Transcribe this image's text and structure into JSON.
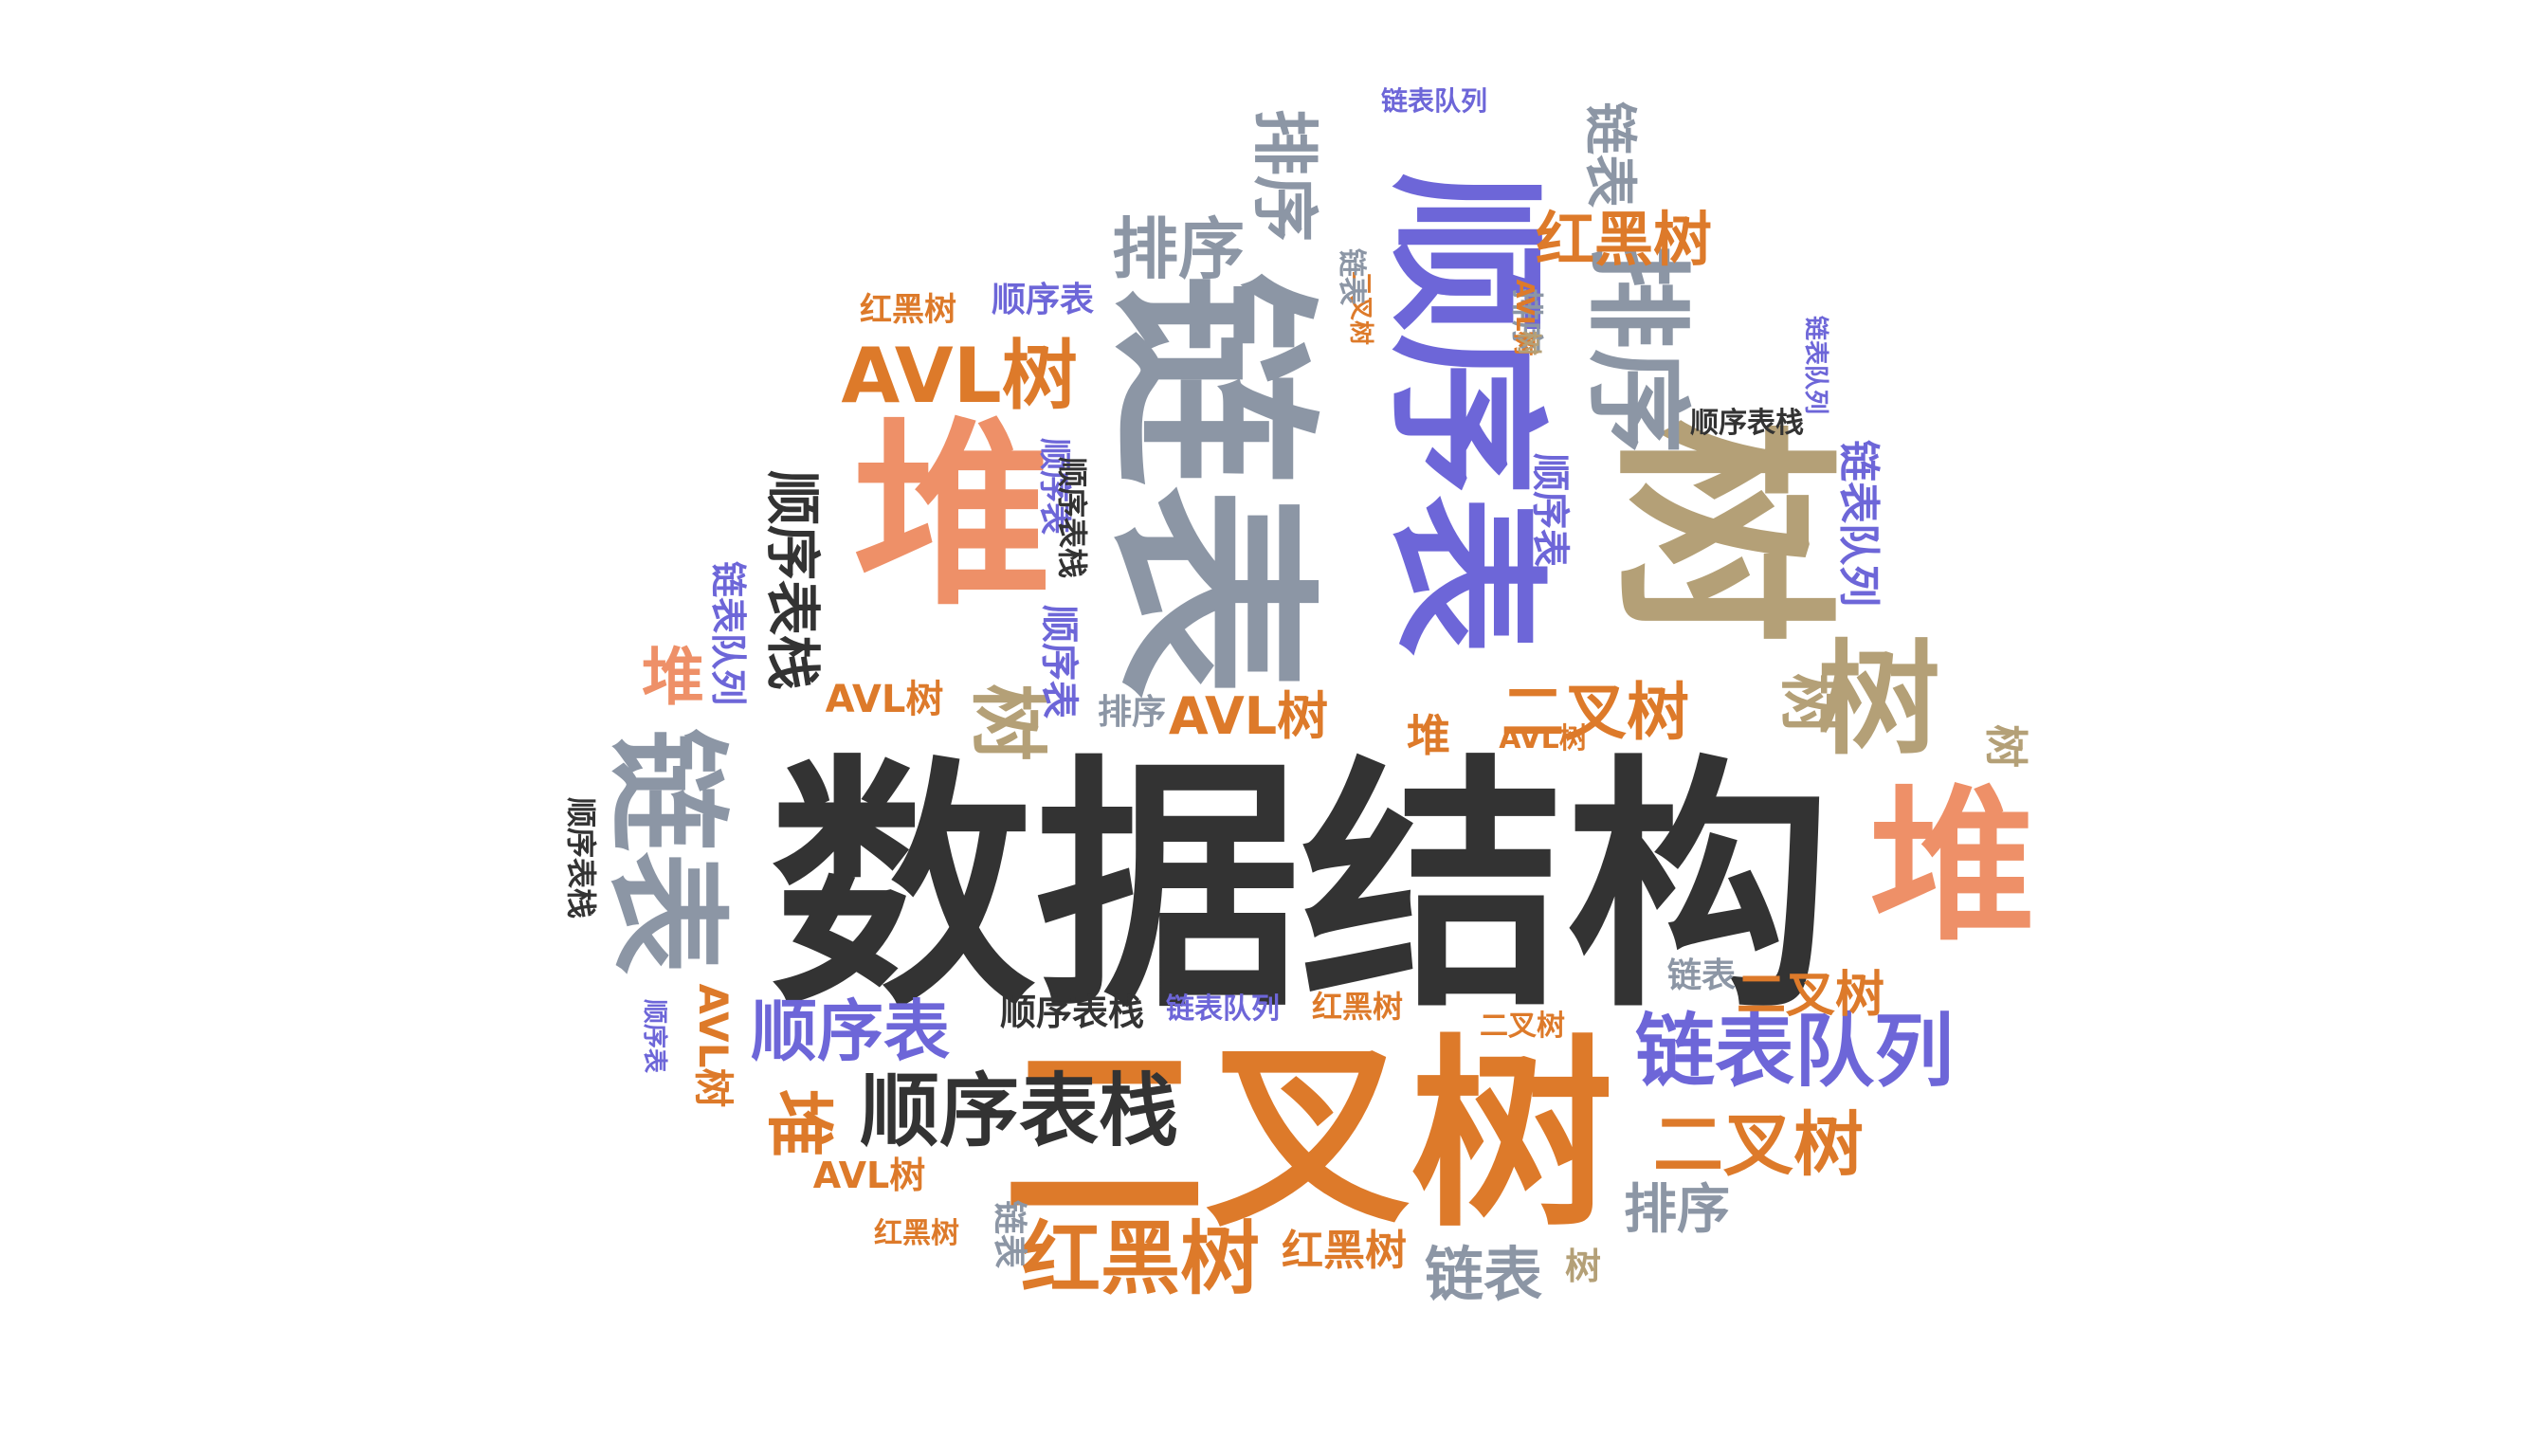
{
  "colors": {
    "dark": "#333333",
    "orange": "#DD7A2A",
    "salmon": "#EE9068",
    "slate": "#8C96A5",
    "tan": "#B4A077",
    "purple": "#6D66D8"
  },
  "words": [
    {
      "text": "数据结构",
      "color": "dark"
    },
    {
      "text": "二叉树",
      "color": "orange"
    },
    {
      "text": "树",
      "color": "tan"
    },
    {
      "text": "链表",
      "color": "slate"
    },
    {
      "text": "顺序表",
      "color": "purple"
    },
    {
      "text": "堆",
      "color": "salmon"
    },
    {
      "text": "链表",
      "color": "slate"
    },
    {
      "text": "堆",
      "color": "salmon"
    },
    {
      "text": "排序",
      "color": "slate"
    },
    {
      "text": "树",
      "color": "tan"
    },
    {
      "text": "链表队列",
      "color": "purple"
    },
    {
      "text": "顺序表栈",
      "color": "dark"
    },
    {
      "text": "AVL树",
      "color": "orange"
    },
    {
      "text": "红黑树",
      "color": "orange"
    },
    {
      "text": "二叉树",
      "color": "orange"
    },
    {
      "text": "顺序表",
      "color": "purple"
    },
    {
      "text": "堆",
      "color": "orange"
    },
    {
      "text": "排序",
      "color": "slate"
    },
    {
      "text": "排序",
      "color": "slate"
    },
    {
      "text": "树",
      "color": "tan"
    },
    {
      "text": "二叉树",
      "color": "orange"
    },
    {
      "text": "顺序表栈",
      "color": "dark"
    },
    {
      "text": "排序",
      "color": "slate"
    },
    {
      "text": "红黑树",
      "color": "orange"
    },
    {
      "text": "链表",
      "color": "slate"
    },
    {
      "text": "二叉树",
      "color": "orange"
    },
    {
      "text": "AVL树",
      "color": "orange"
    },
    {
      "text": "堆",
      "color": "salmon"
    },
    {
      "text": "树",
      "color": "tan"
    },
    {
      "text": "链表",
      "color": "slate"
    },
    {
      "text": "顺序表栈",
      "color": "dark"
    },
    {
      "text": "链表队列",
      "color": "purple"
    },
    {
      "text": "红黑树",
      "color": "orange"
    },
    {
      "text": "红黑树",
      "color": "orange"
    },
    {
      "text": "顺序表",
      "color": "purple"
    },
    {
      "text": "链表队列",
      "color": "purple"
    },
    {
      "text": "顺序表栈",
      "color": "dark"
    },
    {
      "text": "AVL树",
      "color": "orange"
    },
    {
      "text": "AVL树",
      "color": "orange"
    },
    {
      "text": "堆",
      "color": "orange"
    },
    {
      "text": "顺序表",
      "color": "purple"
    },
    {
      "text": "链表队列",
      "color": "purple"
    },
    {
      "text": "链表",
      "color": "slate"
    },
    {
      "text": "顺序表栈",
      "color": "dark"
    },
    {
      "text": "链表队列",
      "color": "purple"
    },
    {
      "text": "树",
      "color": "tan"
    },
    {
      "text": "AVL树",
      "color": "orange"
    },
    {
      "text": "顺序表",
      "color": "purple"
    },
    {
      "text": "红黑树",
      "color": "orange"
    },
    {
      "text": "顺序表",
      "color": "purple"
    },
    {
      "text": "排序",
      "color": "slate"
    },
    {
      "text": "二叉树",
      "color": "orange"
    },
    {
      "text": "链表队列",
      "color": "purple"
    },
    {
      "text": "顺序表栈",
      "color": "dark"
    },
    {
      "text": "顺序表",
      "color": "purple"
    },
    {
      "text": "AVL树",
      "color": "orange"
    },
    {
      "text": "链表",
      "color": "slate"
    },
    {
      "text": "排序",
      "color": "slate"
    },
    {
      "text": "AVL树",
      "color": "orange"
    },
    {
      "text": "二叉树",
      "color": "orange"
    },
    {
      "text": "红黑树",
      "color": "orange"
    },
    {
      "text": "链表",
      "color": "slate"
    },
    {
      "text": "树",
      "color": "tan"
    },
    {
      "text": "树",
      "color": "tan"
    }
  ]
}
